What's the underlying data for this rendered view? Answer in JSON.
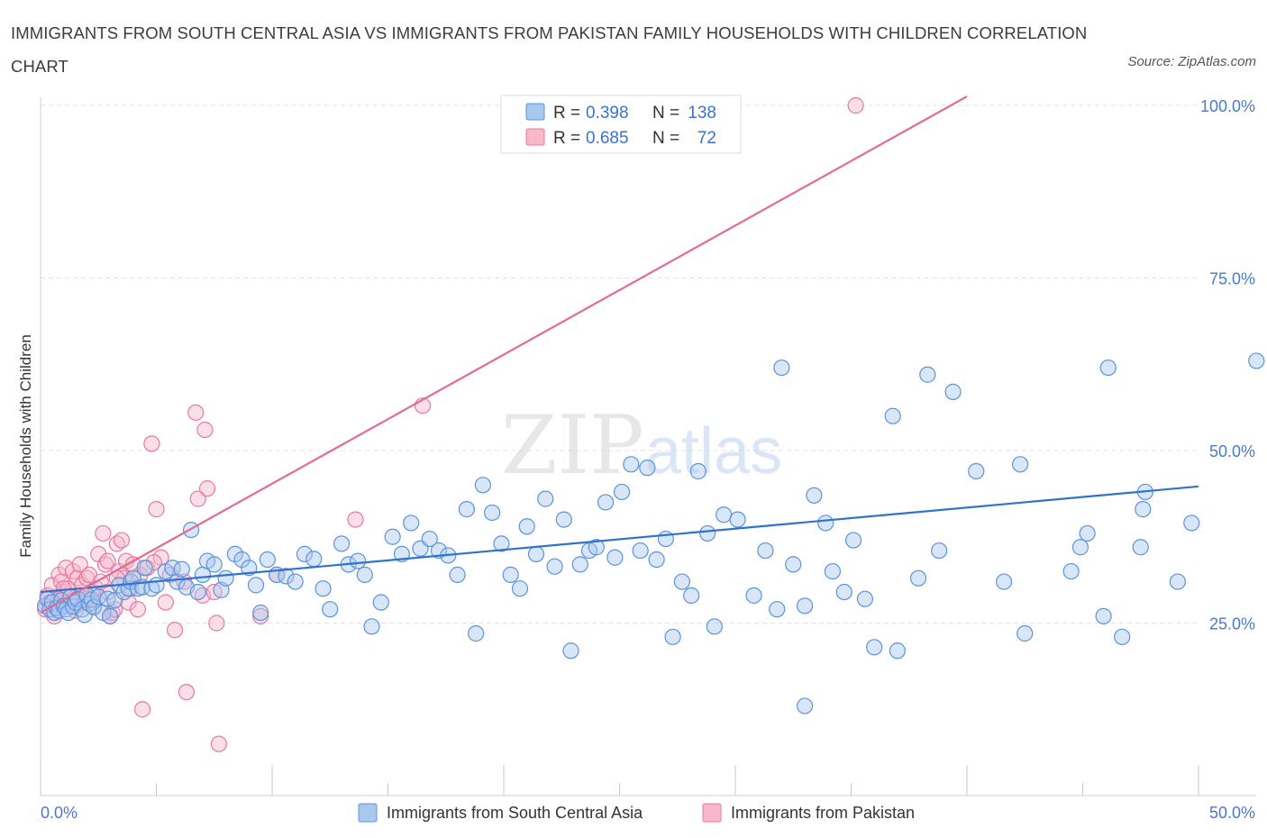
{
  "title": "IMMIGRANTS FROM SOUTH CENTRAL ASIA VS IMMIGRANTS FROM PAKISTAN FAMILY HOUSEHOLDS WITH CHILDREN CORRELATION CHART",
  "source": "Source: ZipAtlas.com",
  "watermark": {
    "zip": "ZIP",
    "atlas": "atlas"
  },
  "legend": {
    "r_label": "R =",
    "n_label": "N =",
    "rows": [
      {
        "r": "0.398",
        "n": "138"
      },
      {
        "r": "0.685",
        "n": "72"
      }
    ]
  },
  "colors": {
    "blue_fill": "#a9c8f0",
    "blue_stroke": "#5b93dc",
    "blue_line": "#2f73cc",
    "pink_fill": "#f7b8cc",
    "pink_stroke": "#e9799d",
    "pink_line": "#e26b93",
    "grid": "#e3e3e3"
  },
  "chart_data": {
    "type": "scatter",
    "title": "IMMIGRANTS FROM SOUTH CENTRAL ASIA VS IMMIGRANTS FROM PAKISTAN FAMILY HOUSEHOLDS WITH CHILDREN CORRELATION CHART",
    "xlabel": "",
    "ylabel": "Family Households with Children",
    "xlim": [
      0,
      50
    ],
    "ylim": [
      0,
      100
    ],
    "x_ticks": [
      "0.0%",
      "50.0%"
    ],
    "y_ticks": [
      {
        "value": 25,
        "label": "25.0%"
      },
      {
        "value": 50,
        "label": "50.0%"
      },
      {
        "value": 75,
        "label": "75.0%"
      },
      {
        "value": 100,
        "label": "100.0%"
      }
    ],
    "grid": true,
    "legend_position": "top-center",
    "series": [
      {
        "name": "Immigrants from South Central Asia",
        "color": "#5b93dc",
        "R": 0.398,
        "N": 138,
        "trend": {
          "x": [
            0,
            50
          ],
          "y": [
            29.5,
            44.8
          ],
          "dashed_from": null
        },
        "points": [
          [
            0.2,
            27.5
          ],
          [
            0.3,
            28.5
          ],
          [
            0.4,
            27
          ],
          [
            0.5,
            28
          ],
          [
            0.6,
            26.5
          ],
          [
            0.7,
            27.2
          ],
          [
            0.8,
            26.8
          ],
          [
            0.9,
            28.3
          ],
          [
            1.0,
            27.5
          ],
          [
            1.1,
            27.0
          ],
          [
            1.2,
            26.5
          ],
          [
            1.3,
            28.8
          ],
          [
            1.4,
            27.4
          ],
          [
            1.5,
            28.0
          ],
          [
            1.6,
            28.5
          ],
          [
            1.8,
            27.0
          ],
          [
            1.9,
            26.2
          ],
          [
            2.0,
            29.0
          ],
          [
            2.1,
            27.8
          ],
          [
            2.2,
            28.4
          ],
          [
            2.3,
            27.3
          ],
          [
            2.5,
            28.8
          ],
          [
            2.7,
            26.5
          ],
          [
            2.9,
            28.5
          ],
          [
            3.0,
            26.0
          ],
          [
            3.2,
            28.3
          ],
          [
            3.4,
            30.5
          ],
          [
            3.6,
            29.5
          ],
          [
            3.8,
            30.0
          ],
          [
            3.9,
            31.0
          ],
          [
            4.0,
            31.5
          ],
          [
            4.2,
            30.0
          ],
          [
            4.4,
            30.2
          ],
          [
            4.5,
            33.0
          ],
          [
            4.8,
            30.0
          ],
          [
            5.0,
            30.5
          ],
          [
            5.4,
            32.5
          ],
          [
            5.7,
            33.0
          ],
          [
            5.9,
            31.0
          ],
          [
            6.1,
            32.8
          ],
          [
            6.3,
            30.2
          ],
          [
            6.5,
            38.5
          ],
          [
            6.8,
            29.5
          ],
          [
            7.0,
            32.0
          ],
          [
            7.2,
            34.0
          ],
          [
            7.5,
            33.5
          ],
          [
            7.8,
            29.8
          ],
          [
            8.0,
            31.5
          ],
          [
            8.4,
            35.0
          ],
          [
            8.7,
            34.2
          ],
          [
            9.0,
            33.0
          ],
          [
            9.3,
            30.5
          ],
          [
            9.5,
            26.5
          ],
          [
            9.8,
            34.2
          ],
          [
            10.2,
            32.0
          ],
          [
            10.6,
            31.8
          ],
          [
            11.0,
            31.0
          ],
          [
            11.4,
            35.0
          ],
          [
            11.8,
            34.3
          ],
          [
            12.2,
            30.0
          ],
          [
            12.5,
            27.0
          ],
          [
            13.0,
            36.5
          ],
          [
            13.3,
            33.5
          ],
          [
            13.7,
            34.0
          ],
          [
            14.0,
            32.0
          ],
          [
            14.3,
            24.5
          ],
          [
            14.7,
            28.0
          ],
          [
            15.2,
            37.5
          ],
          [
            15.6,
            35.0
          ],
          [
            16.0,
            39.5
          ],
          [
            16.4,
            35.8
          ],
          [
            16.8,
            37.2
          ],
          [
            17.2,
            35.5
          ],
          [
            17.6,
            34.8
          ],
          [
            18.0,
            32.0
          ],
          [
            18.4,
            41.5
          ],
          [
            18.8,
            23.5
          ],
          [
            19.1,
            45.0
          ],
          [
            19.5,
            41.0
          ],
          [
            19.9,
            36.5
          ],
          [
            20.3,
            32.0
          ],
          [
            20.7,
            30.0
          ],
          [
            21.0,
            39.0
          ],
          [
            21.4,
            35.0
          ],
          [
            21.8,
            43.0
          ],
          [
            22.2,
            33.2
          ],
          [
            22.6,
            40.0
          ],
          [
            22.9,
            21.0
          ],
          [
            23.3,
            33.5
          ],
          [
            23.7,
            35.5
          ],
          [
            24.0,
            36.0
          ],
          [
            24.4,
            42.5
          ],
          [
            24.8,
            34.5
          ],
          [
            25.1,
            44.0
          ],
          [
            25.5,
            48.0
          ],
          [
            25.9,
            35.5
          ],
          [
            26.2,
            47.5
          ],
          [
            26.6,
            34.2
          ],
          [
            27.0,
            37.2
          ],
          [
            27.3,
            23.0
          ],
          [
            27.7,
            31.0
          ],
          [
            28.1,
            29.0
          ],
          [
            28.4,
            47.0
          ],
          [
            28.8,
            38.0
          ],
          [
            29.1,
            24.5
          ],
          [
            29.5,
            40.7
          ],
          [
            30.1,
            40.0
          ],
          [
            30.8,
            29.0
          ],
          [
            31.3,
            35.5
          ],
          [
            31.8,
            27.0
          ],
          [
            32.0,
            62.0
          ],
          [
            32.5,
            33.5
          ],
          [
            33.0,
            27.5
          ],
          [
            33.4,
            43.5
          ],
          [
            33.9,
            39.5
          ],
          [
            34.2,
            32.5
          ],
          [
            34.7,
            29.5
          ],
          [
            35.1,
            37.0
          ],
          [
            35.6,
            28.5
          ],
          [
            36.0,
            21.5
          ],
          [
            36.8,
            55.0
          ],
          [
            37.0,
            21.0
          ],
          [
            37.9,
            31.5
          ],
          [
            38.3,
            61.0
          ],
          [
            38.8,
            35.5
          ],
          [
            39.4,
            58.5
          ],
          [
            40.4,
            47.0
          ],
          [
            41.6,
            31.0
          ],
          [
            42.3,
            48.0
          ],
          [
            42.5,
            23.5
          ],
          [
            44.5,
            32.5
          ],
          [
            44.9,
            36.0
          ],
          [
            45.2,
            38.0
          ],
          [
            45.9,
            26.0
          ],
          [
            46.1,
            62.0
          ],
          [
            46.7,
            23.0
          ],
          [
            47.5,
            36.0
          ],
          [
            47.6,
            41.5
          ],
          [
            47.7,
            44.0
          ],
          [
            49.1,
            31.0
          ],
          [
            49.7,
            39.5
          ],
          [
            52.5,
            63.0
          ],
          [
            33.0,
            13.0
          ]
        ]
      },
      {
        "name": "Immigrants from Pakistan",
        "color": "#e9799d",
        "R": 0.685,
        "N": 72,
        "trend": {
          "x": [
            0,
            50
          ],
          "y": [
            26.5,
            120.0
          ],
          "dashed_from": 40.0
        },
        "points": [
          [
            0.2,
            27.0
          ],
          [
            0.3,
            29.0
          ],
          [
            0.4,
            28.0
          ],
          [
            0.5,
            30.5
          ],
          [
            0.6,
            26.5
          ],
          [
            0.7,
            27.8
          ],
          [
            0.8,
            32.0
          ],
          [
            0.9,
            31.0
          ],
          [
            1.0,
            29.5
          ],
          [
            1.1,
            33.0
          ],
          [
            1.2,
            30.0
          ],
          [
            1.3,
            28.8
          ],
          [
            1.4,
            32.5
          ],
          [
            1.5,
            27.5
          ],
          [
            1.6,
            31.5
          ],
          [
            1.7,
            33.5
          ],
          [
            1.8,
            30.5
          ],
          [
            1.9,
            28.0
          ],
          [
            2.0,
            31.5
          ],
          [
            2.1,
            32.0
          ],
          [
            2.2,
            29.5
          ],
          [
            2.3,
            27.5
          ],
          [
            2.4,
            30.0
          ],
          [
            2.5,
            35.0
          ],
          [
            2.6,
            31.0
          ],
          [
            2.7,
            38.0
          ],
          [
            2.8,
            33.5
          ],
          [
            2.9,
            34.0
          ],
          [
            3.0,
            26.0
          ],
          [
            3.1,
            26.5
          ],
          [
            3.2,
            27.0
          ],
          [
            3.3,
            36.5
          ],
          [
            3.4,
            32.5
          ],
          [
            3.5,
            37.0
          ],
          [
            3.6,
            31.5
          ],
          [
            3.7,
            34.0
          ],
          [
            3.8,
            28.0
          ],
          [
            3.9,
            30.0
          ],
          [
            4.0,
            33.5
          ],
          [
            4.2,
            27.0
          ],
          [
            4.3,
            32.0
          ],
          [
            4.4,
            12.5
          ],
          [
            4.6,
            33.0
          ],
          [
            4.8,
            51.0
          ],
          [
            5.0,
            41.5
          ],
          [
            5.2,
            34.5
          ],
          [
            5.4,
            28.0
          ],
          [
            5.6,
            32.0
          ],
          [
            5.8,
            24.0
          ],
          [
            6.3,
            15.0
          ],
          [
            6.7,
            55.5
          ],
          [
            6.8,
            43.0
          ],
          [
            7.0,
            29.0
          ],
          [
            7.1,
            53.0
          ],
          [
            7.2,
            44.5
          ],
          [
            7.5,
            29.5
          ],
          [
            7.6,
            25.0
          ],
          [
            7.7,
            7.5
          ],
          [
            9.5,
            26.0
          ],
          [
            10.2,
            32.0
          ],
          [
            13.6,
            40.0
          ],
          [
            16.5,
            56.5
          ],
          [
            35.2,
            100.0
          ],
          [
            0.6,
            26.0
          ],
          [
            1.0,
            30.0
          ],
          [
            2.0,
            28.5
          ],
          [
            2.9,
            29.5
          ],
          [
            3.3,
            31.5
          ],
          [
            1.5,
            26.8
          ],
          [
            0.8,
            28.5
          ],
          [
            4.9,
            33.8
          ],
          [
            6.2,
            31.0
          ]
        ]
      }
    ]
  },
  "bottom_legend": [
    {
      "label": "Immigrants from South Central Asia"
    },
    {
      "label": "Immigrants from Pakistan"
    }
  ]
}
